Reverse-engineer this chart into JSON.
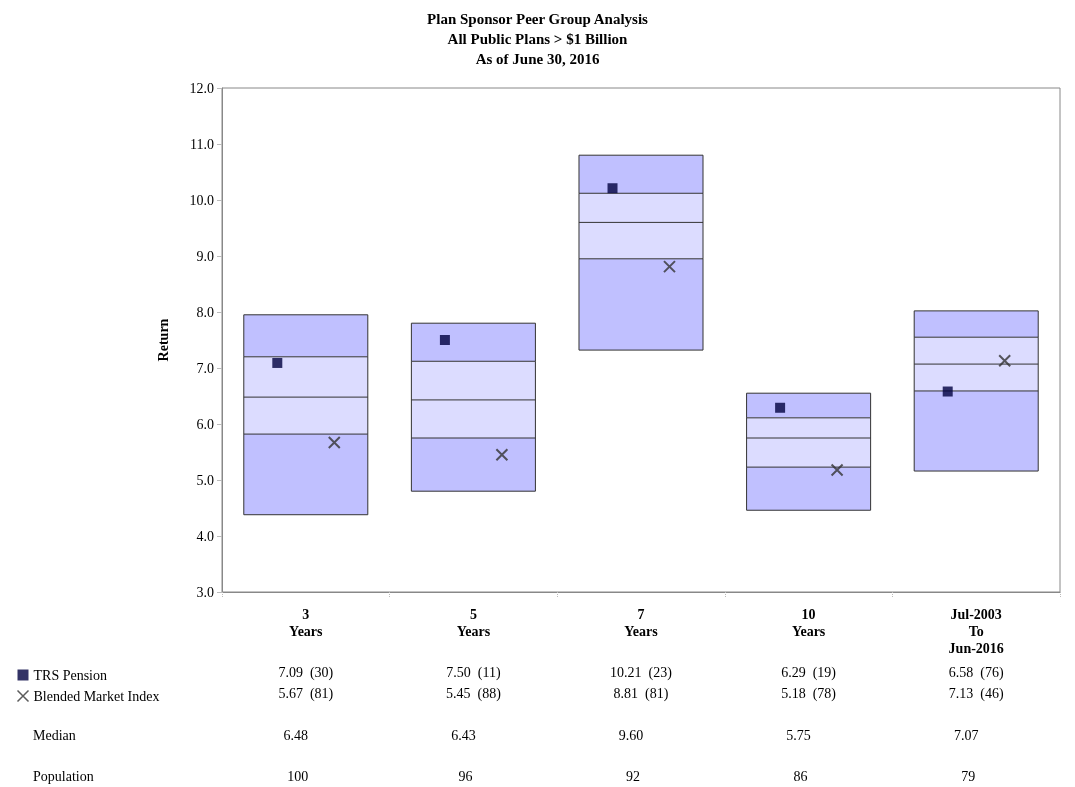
{
  "chart_data": {
    "type": "box",
    "title": "Plan Sponsor Peer Group Analysis",
    "subtitle": "All Public Plans > $1 Billion\nAs of June 30, 2016",
    "ylabel": "Return",
    "categories": [
      "3\nYears",
      "5\nYears",
      "7\nYears",
      "10\nYears",
      "Jul-2003\nTo\nJun-2016"
    ],
    "ylim": [
      3,
      12
    ],
    "yticks": [
      {
        "value": 3,
        "label": "3.0"
      },
      {
        "value": 4,
        "label": "4.0"
      },
      {
        "value": 5,
        "label": "5.0"
      },
      {
        "value": 6,
        "label": "6.0"
      },
      {
        "value": 7,
        "label": "7.0"
      },
      {
        "value": 8,
        "label": "8.0"
      },
      {
        "value": 9,
        "label": "9.0"
      },
      {
        "value": 10,
        "label": "10.0"
      },
      {
        "value": 11,
        "label": "11.0"
      },
      {
        "value": 12,
        "label": "12.0"
      }
    ],
    "grid": false,
    "legend": "bottom left",
    "series": [
      {
        "color": "#dcdcff",
        "value_labels": [
          "6.48",
          "6.43",
          "9.60",
          "5.75",
          "7.07"
        ],
        "boxes": [
          {
            "low": 4.38,
            "q1": 5.82,
            "median": 6.48,
            "q3": 7.2,
            "high": 7.95
          },
          {
            "low": 4.8,
            "q1": 5.75,
            "median": 6.43,
            "q3": 7.12,
            "high": 7.8
          },
          {
            "low": 7.32,
            "q1": 8.95,
            "median": 9.6,
            "q3": 10.12,
            "high": 10.8
          },
          {
            "low": 4.46,
            "q1": 5.23,
            "median": 5.75,
            "q3": 6.11,
            "high": 6.55
          },
          {
            "low": 5.16,
            "q1": 6.59,
            "median": 7.07,
            "q3": 7.55,
            "high": 8.02
          }
        ]
      },
      {
        "type": "scatter",
        "name": "TRS Pension",
        "color": "#000040",
        "marker": "square",
        "values": [
          7.09,
          7.5,
          10.21,
          6.29,
          6.58
        ],
        "value_labels": [
          "7.09  (30)",
          "7.50  (11)",
          "10.21  (23)",
          "6.29  (19)",
          "6.58  (76)"
        ]
      },
      {
        "type": "scatter",
        "name": "Blended Market Index",
        "color": "#333333",
        "marker": "cross",
        "values": [
          5.67,
          5.45,
          8.81,
          5.18,
          7.13
        ],
        "value_labels": [
          "5.67  (81)",
          "5.45  (88)",
          "8.81  (81)",
          "5.18  (78)",
          "7.13  (46)"
        ]
      }
    ],
    "annotations": [
      "Median",
      "Population",
      "100",
      "96",
      "92",
      "86",
      "79"
    ]
  }
}
